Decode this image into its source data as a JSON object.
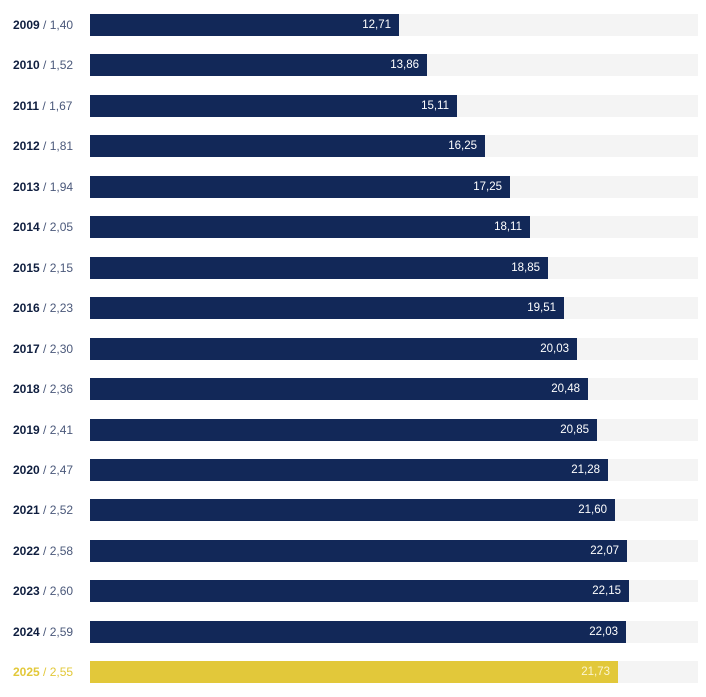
{
  "chart_data": {
    "type": "bar",
    "orientation": "horizontal",
    "xlim": [
      0,
      25
    ],
    "grid": false,
    "colors": {
      "bar": "#122858",
      "highlight": "#e2c83a",
      "track": "#f4f4f4"
    },
    "rows": [
      {
        "year": "2009",
        "ratio": "1,40",
        "value": 12.71,
        "value_label": "12,71",
        "highlight": false
      },
      {
        "year": "2010",
        "ratio": "1,52",
        "value": 13.86,
        "value_label": "13,86",
        "highlight": false
      },
      {
        "year": "2011",
        "ratio": "1,67",
        "value": 15.11,
        "value_label": "15,11",
        "highlight": false
      },
      {
        "year": "2012",
        "ratio": "1,81",
        "value": 16.25,
        "value_label": "16,25",
        "highlight": false
      },
      {
        "year": "2013",
        "ratio": "1,94",
        "value": 17.25,
        "value_label": "17,25",
        "highlight": false
      },
      {
        "year": "2014",
        "ratio": "2,05",
        "value": 18.11,
        "value_label": "18,11",
        "highlight": false
      },
      {
        "year": "2015",
        "ratio": "2,15",
        "value": 18.85,
        "value_label": "18,85",
        "highlight": false
      },
      {
        "year": "2016",
        "ratio": "2,23",
        "value": 19.51,
        "value_label": "19,51",
        "highlight": false
      },
      {
        "year": "2017",
        "ratio": "2,30",
        "value": 20.03,
        "value_label": "20,03",
        "highlight": false
      },
      {
        "year": "2018",
        "ratio": "2,36",
        "value": 20.48,
        "value_label": "20,48",
        "highlight": false
      },
      {
        "year": "2019",
        "ratio": "2,41",
        "value": 20.85,
        "value_label": "20,85",
        "highlight": false
      },
      {
        "year": "2020",
        "ratio": "2,47",
        "value": 21.28,
        "value_label": "21,28",
        "highlight": false
      },
      {
        "year": "2021",
        "ratio": "2,52",
        "value": 21.6,
        "value_label": "21,60",
        "highlight": false
      },
      {
        "year": "2022",
        "ratio": "2,58",
        "value": 22.07,
        "value_label": "22,07",
        "highlight": false
      },
      {
        "year": "2023",
        "ratio": "2,60",
        "value": 22.15,
        "value_label": "22,15",
        "highlight": false
      },
      {
        "year": "2024",
        "ratio": "2,59",
        "value": 22.03,
        "value_label": "22,03",
        "highlight": false
      },
      {
        "year": "2025",
        "ratio": "2,55",
        "value": 21.73,
        "value_label": "21,73",
        "highlight": true
      }
    ],
    "separator": " / "
  }
}
